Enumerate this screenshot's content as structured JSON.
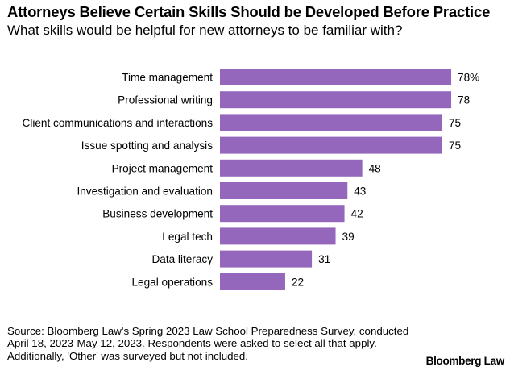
{
  "chart_data": {
    "type": "bar",
    "orientation": "horizontal",
    "title": "Attorneys Believe Certain Skills Should be Developed Before Practice",
    "subtitle": "What skills would be helpful for new attorneys to be familiar with?",
    "categories": [
      "Time management",
      "Professional writing",
      "Client communications and interactions",
      "Issue spotting and analysis",
      "Project management",
      "Investigation and evaluation",
      "Business development",
      "Legal tech",
      "Data literacy",
      "Legal operations"
    ],
    "values": [
      78,
      78,
      75,
      75,
      48,
      43,
      42,
      39,
      31,
      22
    ],
    "value_labels": [
      "78%",
      "78",
      "75",
      "75",
      "48",
      "43",
      "42",
      "39",
      "31",
      "22"
    ],
    "unit": "%",
    "xlim": [
      0,
      100
    ],
    "bar_color": "#9467bd",
    "xlabel": "",
    "ylabel": ""
  },
  "footer": {
    "source": "Source: Bloomberg Law's Spring 2023 Law School Preparedness Survey, conducted April 18, 2023-May 12, 2023. Respondents were asked to select all that apply. Additionally, 'Other' was surveyed but not included.",
    "brand": "Bloomberg Law"
  }
}
